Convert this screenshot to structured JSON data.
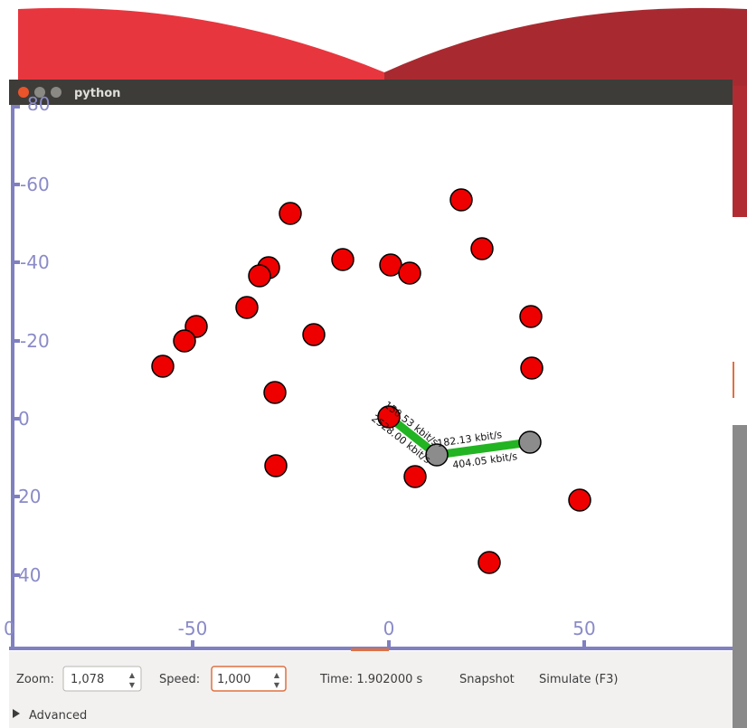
{
  "window": {
    "title": "python"
  },
  "canvas": {
    "y_tick_labels": [
      "80",
      "-60",
      "-40",
      "-20",
      "0",
      "20",
      "40"
    ],
    "x_tick_labels": [
      "0",
      "-50",
      "0",
      "50"
    ],
    "link_labels": [
      "150.53 kbit/s",
      "2528.00 kbit/s",
      "182.13 kbit/s",
      "404.05 kbit/s"
    ]
  },
  "toolbar": {
    "zoom_label": "Zoom:",
    "zoom_value": "1,078",
    "speed_label": "Speed:",
    "speed_value": "1,000",
    "time": "Time: 1.902000 s",
    "snapshot": "Snapshot",
    "simulate": "Simulate (F3)",
    "advanced": "Advanced"
  }
}
